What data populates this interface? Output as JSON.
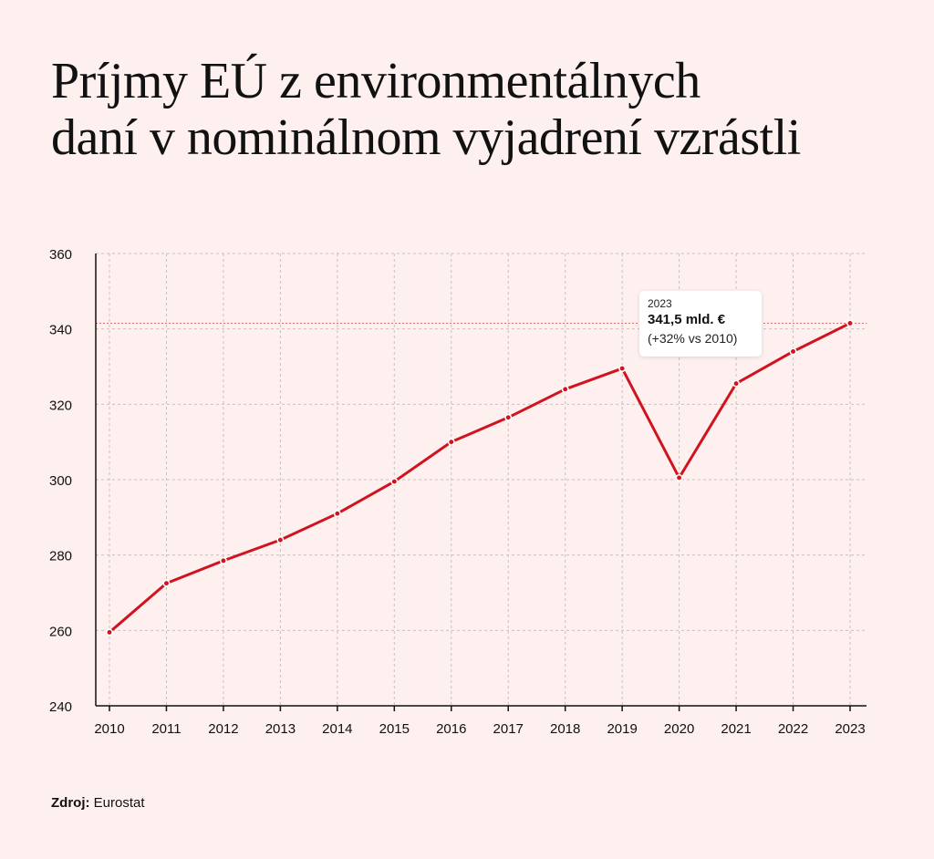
{
  "title_lines": [
    "Príjmy EÚ z environmentálnych",
    "daní v nominálnom vyjadrení vzrástli"
  ],
  "source": {
    "label": "Zdroj:",
    "value": "Eurostat"
  },
  "tooltip": {
    "year": "2023",
    "value": "341,5 mld. €",
    "change": "(+32% vs 2010)"
  },
  "colors": {
    "line": "#d0131f",
    "background": "#fdf0ef",
    "grid": "#c9c0bf",
    "axis": "#111111"
  },
  "chart_data": {
    "type": "line",
    "title": "Príjmy EÚ z environmentálnych daní v nominálnom vyjadrení vzrástli",
    "xlabel": "",
    "ylabel": "",
    "categories": [
      "2010",
      "2011",
      "2012",
      "2013",
      "2014",
      "2015",
      "2016",
      "2017",
      "2018",
      "2019",
      "2020",
      "2021",
      "2022",
      "2023"
    ],
    "series": [
      {
        "values": [
          259.5,
          272.5,
          278.5,
          284,
          291,
          299.5,
          310,
          316.5,
          324,
          329.5,
          300.5,
          325.5,
          334,
          341.5
        ]
      }
    ],
    "ylim": [
      240,
      360
    ],
    "yticks": [
      240,
      260,
      280,
      300,
      320,
      340,
      360
    ],
    "grid": true,
    "highlight": {
      "category": "2023",
      "value": 341.5
    }
  }
}
